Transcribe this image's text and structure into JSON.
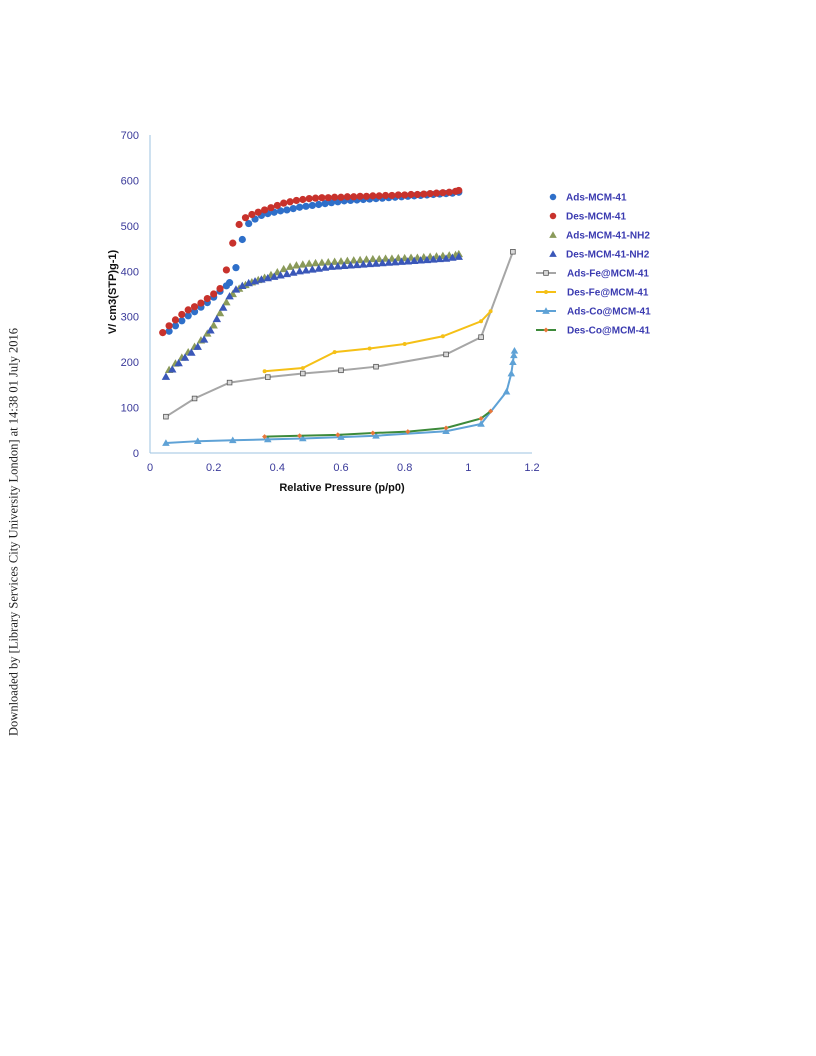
{
  "watermark": "Downloaded by [Library Services City University London] at 14:38 01 July 2016",
  "chart_data": {
    "type": "scatter",
    "xlabel": "Relative Pressure  (p/p0)",
    "ylabel": "V/ cm3(STP)g-1)",
    "xlim": [
      0,
      1.2
    ],
    "ylim": [
      0,
      700
    ],
    "xticks": [
      "0",
      "0.2",
      "0.4",
      "0.6",
      "0.8",
      "1",
      "1.2"
    ],
    "yticks": [
      "0",
      "100",
      "200",
      "300",
      "400",
      "500",
      "600",
      "700"
    ],
    "grid": false,
    "legend_position": "right",
    "series": [
      {
        "name": "Ads-MCM-41",
        "marker": "circle",
        "line": false,
        "color": "#2e6fc9",
        "x": [
          0.06,
          0.08,
          0.1,
          0.12,
          0.14,
          0.16,
          0.18,
          0.2,
          0.22,
          0.24,
          0.25,
          0.27,
          0.29,
          0.31,
          0.33,
          0.35,
          0.37,
          0.39,
          0.41,
          0.43,
          0.45,
          0.47,
          0.49,
          0.51,
          0.53,
          0.55,
          0.57,
          0.59,
          0.61,
          0.63,
          0.65,
          0.67,
          0.69,
          0.71,
          0.73,
          0.75,
          0.77,
          0.79,
          0.81,
          0.83,
          0.85,
          0.87,
          0.89,
          0.91,
          0.93,
          0.95,
          0.97
        ],
        "y": [
          268,
          280,
          291,
          302,
          311,
          321,
          331,
          343,
          356,
          368,
          375,
          408,
          470,
          505,
          515,
          523,
          527,
          530,
          533,
          535,
          538,
          541,
          543,
          545,
          547,
          549,
          551,
          553,
          555,
          556,
          557,
          558,
          559,
          560,
          561,
          562,
          563,
          564,
          565,
          566,
          567,
          568,
          569,
          570,
          571,
          572,
          574
        ]
      },
      {
        "name": "Des-MCM-41",
        "marker": "circle",
        "line": false,
        "color": "#c8322c",
        "x": [
          0.04,
          0.06,
          0.08,
          0.1,
          0.12,
          0.14,
          0.16,
          0.18,
          0.2,
          0.22,
          0.24,
          0.26,
          0.28,
          0.3,
          0.32,
          0.34,
          0.36,
          0.38,
          0.4,
          0.42,
          0.44,
          0.46,
          0.48,
          0.5,
          0.52,
          0.54,
          0.56,
          0.58,
          0.6,
          0.62,
          0.64,
          0.66,
          0.68,
          0.7,
          0.72,
          0.74,
          0.76,
          0.78,
          0.8,
          0.82,
          0.84,
          0.86,
          0.88,
          0.9,
          0.92,
          0.94,
          0.96,
          0.97
        ],
        "y": [
          265,
          280,
          293,
          305,
          315,
          322,
          330,
          340,
          350,
          362,
          403,
          462,
          503,
          518,
          525,
          530,
          535,
          540,
          545,
          550,
          553,
          556,
          558,
          560,
          561,
          562,
          562,
          563,
          563,
          564,
          564,
          565,
          565,
          566,
          566,
          567,
          567,
          568,
          568,
          569,
          569,
          570,
          571,
          572,
          573,
          574,
          576,
          578
        ]
      },
      {
        "name": "Ads-MCM-41-NH2",
        "marker": "triangle",
        "line": false,
        "color": "#8a9a5a",
        "x": [
          0.06,
          0.08,
          0.1,
          0.12,
          0.14,
          0.16,
          0.18,
          0.2,
          0.22,
          0.24,
          0.26,
          0.28,
          0.3,
          0.32,
          0.34,
          0.36,
          0.38,
          0.4,
          0.42,
          0.44,
          0.46,
          0.48,
          0.5,
          0.52,
          0.54,
          0.56,
          0.58,
          0.6,
          0.62,
          0.64,
          0.66,
          0.68,
          0.7,
          0.72,
          0.74,
          0.76,
          0.78,
          0.8,
          0.82,
          0.84,
          0.86,
          0.88,
          0.9,
          0.92,
          0.94,
          0.96,
          0.97
        ],
        "y": [
          183,
          197,
          210,
          222,
          234,
          248,
          263,
          281,
          308,
          332,
          350,
          362,
          370,
          376,
          381,
          386,
          392,
          398,
          405,
          410,
          413,
          415,
          417,
          418,
          419,
          420,
          421,
          422,
          423,
          424,
          425,
          426,
          427,
          427,
          428,
          428,
          429,
          429,
          430,
          430,
          431,
          432,
          433,
          434,
          435,
          436,
          438
        ]
      },
      {
        "name": "Des-MCM-41-NH2",
        "marker": "triangle",
        "line": false,
        "color": "#3a57b8",
        "x": [
          0.05,
          0.07,
          0.09,
          0.11,
          0.13,
          0.15,
          0.17,
          0.19,
          0.21,
          0.23,
          0.25,
          0.27,
          0.29,
          0.31,
          0.33,
          0.35,
          0.37,
          0.39,
          0.41,
          0.43,
          0.45,
          0.47,
          0.49,
          0.51,
          0.53,
          0.55,
          0.57,
          0.59,
          0.61,
          0.63,
          0.65,
          0.67,
          0.69,
          0.71,
          0.73,
          0.75,
          0.77,
          0.79,
          0.81,
          0.83,
          0.85,
          0.87,
          0.89,
          0.91,
          0.93,
          0.95,
          0.97
        ],
        "y": [
          168,
          184,
          198,
          210,
          221,
          234,
          250,
          270,
          295,
          320,
          345,
          360,
          368,
          374,
          378,
          382,
          385,
          388,
          391,
          394,
          397,
          400,
          402,
          404,
          406,
          408,
          410,
          411,
          412,
          413,
          414,
          415,
          416,
          417,
          418,
          419,
          420,
          421,
          422,
          423,
          424,
          425,
          426,
          427,
          428,
          430,
          432
        ]
      },
      {
        "name": "Ads-Fe@MCM-41",
        "marker": "square",
        "line": true,
        "color": "#a6a6a6",
        "x": [
          0.05,
          0.14,
          0.25,
          0.37,
          0.48,
          0.6,
          0.71,
          0.93,
          1.04,
          1.14
        ],
        "y": [
          80,
          120,
          155,
          167,
          175,
          182,
          190,
          217,
          255,
          443
        ]
      },
      {
        "name": "Des-Fe@MCM-41",
        "marker": "dot",
        "line": true,
        "color": "#f5c016",
        "x": [
          0.36,
          0.48,
          0.58,
          0.69,
          0.8,
          0.92,
          1.04,
          1.07
        ],
        "y": [
          180,
          187,
          222,
          230,
          240,
          257,
          290,
          312
        ]
      },
      {
        "name": "Ads-Co@MCM-41",
        "marker": "triangle",
        "line": true,
        "color": "#5fa2d6",
        "x": [
          0.05,
          0.15,
          0.26,
          0.37,
          0.48,
          0.6,
          0.71,
          0.93,
          1.04,
          1.12,
          1.135,
          1.14,
          1.143,
          1.145
        ],
        "y": [
          22,
          26,
          28,
          30,
          32,
          35,
          38,
          48,
          64,
          135,
          175,
          200,
          215,
          225
        ]
      },
      {
        "name": "Des-Co@MCM-41",
        "marker": "diamond",
        "line": true,
        "color": "#e8773a",
        "line_color": "#3d8a3a",
        "x": [
          0.36,
          0.47,
          0.59,
          0.7,
          0.81,
          0.93,
          1.04,
          1.07
        ],
        "y": [
          36,
          38,
          40,
          44,
          47,
          55,
          76,
          92
        ]
      }
    ]
  }
}
